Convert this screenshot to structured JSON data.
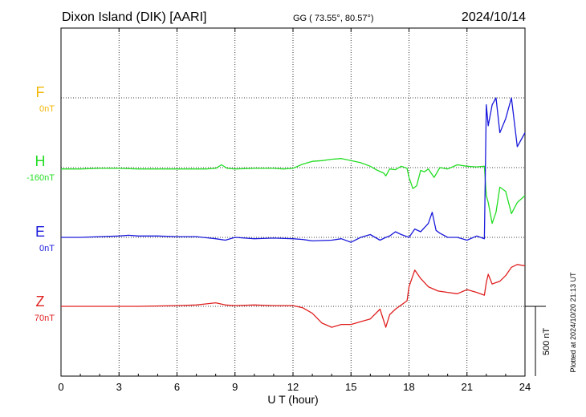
{
  "header": {
    "station": "Dixon Island (DIK)  [AARI]",
    "coords": "GG ( 73.55°,  80.57°)",
    "date": "2024/10/14"
  },
  "side_note": "Plotted at 2024/10/20 21:13 UT",
  "scale_bar": {
    "label": "500 nT",
    "value_nT": 500
  },
  "chart_data": {
    "type": "line",
    "xlabel": "U T (hour)",
    "xlim": [
      0,
      24
    ],
    "xticks": [
      "0",
      "3",
      "6",
      "9",
      "12",
      "15",
      "18",
      "21",
      "24"
    ],
    "series": [
      {
        "name": "F",
        "baseline": "0nT",
        "color": "#f2b705",
        "x": [],
        "y": []
      },
      {
        "name": "H",
        "baseline": "-160nT",
        "color": "#22dd22",
        "x": [
          0,
          1,
          2,
          3,
          4,
          5,
          6,
          7,
          7.5,
          8,
          8.3,
          8.6,
          9,
          10,
          11,
          11.5,
          12,
          12.5,
          13,
          13.5,
          14,
          14.5,
          15,
          15.5,
          16,
          16.3,
          16.7,
          16.8,
          17,
          17.3,
          17.6,
          17.9,
          18,
          18.2,
          18.4,
          18.6,
          18.8,
          19,
          19.3,
          19.6,
          20,
          20.5,
          21,
          21.5,
          21.9,
          22,
          22.1,
          22.3,
          22.5,
          22.7,
          23,
          23.3,
          23.6,
          24
        ],
        "y": [
          -10,
          -10,
          -5,
          -5,
          -10,
          -10,
          -10,
          -10,
          -10,
          -5,
          20,
          -5,
          -10,
          -5,
          -5,
          -10,
          -5,
          25,
          45,
          50,
          60,
          65,
          50,
          35,
          10,
          -15,
          -40,
          -60,
          -10,
          -15,
          10,
          -5,
          -70,
          -150,
          -130,
          -20,
          -30,
          -10,
          -70,
          0,
          -10,
          20,
          10,
          5,
          10,
          -200,
          -250,
          -400,
          -320,
          -140,
          -170,
          -330,
          -250,
          -200
        ]
      },
      {
        "name": "E",
        "baseline": "0nT",
        "color": "#1a1adc",
        "x": [
          0,
          1,
          2,
          3,
          3.5,
          4,
          5,
          6,
          7,
          8,
          8.5,
          9,
          10,
          11,
          12,
          12.5,
          13,
          14,
          14.5,
          15,
          15.5,
          16,
          16.5,
          16.8,
          17,
          17.3,
          17.6,
          18,
          18.3,
          18.6,
          19,
          19.2,
          19.4,
          19.6,
          20,
          20.5,
          21,
          21.5,
          21.9,
          22,
          22.1,
          22.3,
          22.5,
          22.7,
          23,
          23.3,
          23.6,
          24
        ],
        "y": [
          0,
          0,
          5,
          10,
          15,
          10,
          10,
          5,
          5,
          -10,
          -20,
          0,
          -10,
          -5,
          -10,
          -15,
          -25,
          -20,
          -10,
          -35,
          0,
          20,
          -20,
          0,
          10,
          40,
          20,
          0,
          60,
          40,
          100,
          180,
          50,
          30,
          0,
          0,
          -20,
          10,
          -10,
          950,
          800,
          950,
          1000,
          750,
          850,
          1000,
          650,
          750
        ]
      },
      {
        "name": "Z",
        "baseline": "70nT",
        "color": "#e02020",
        "x": [
          0,
          2,
          4,
          6,
          7,
          8,
          8.5,
          9,
          10,
          11,
          12,
          12.5,
          13,
          13.5,
          14,
          14.5,
          15,
          15.5,
          16,
          16.5,
          16.8,
          17,
          17.3,
          17.6,
          17.9,
          18,
          18.3,
          18.6,
          19,
          19.5,
          20,
          20.5,
          21,
          21.5,
          21.9,
          22,
          22.1,
          22.3,
          22.5,
          22.7,
          23,
          23.3,
          23.6,
          24
        ],
        "y": [
          0,
          0,
          0,
          5,
          10,
          25,
          10,
          5,
          10,
          5,
          5,
          -10,
          -50,
          -120,
          -150,
          -130,
          -130,
          -110,
          -90,
          -20,
          -150,
          -60,
          -20,
          10,
          40,
          140,
          260,
          200,
          140,
          110,
          100,
          90,
          120,
          100,
          80,
          170,
          230,
          160,
          170,
          180,
          220,
          280,
          300,
          290
        ]
      }
    ]
  }
}
